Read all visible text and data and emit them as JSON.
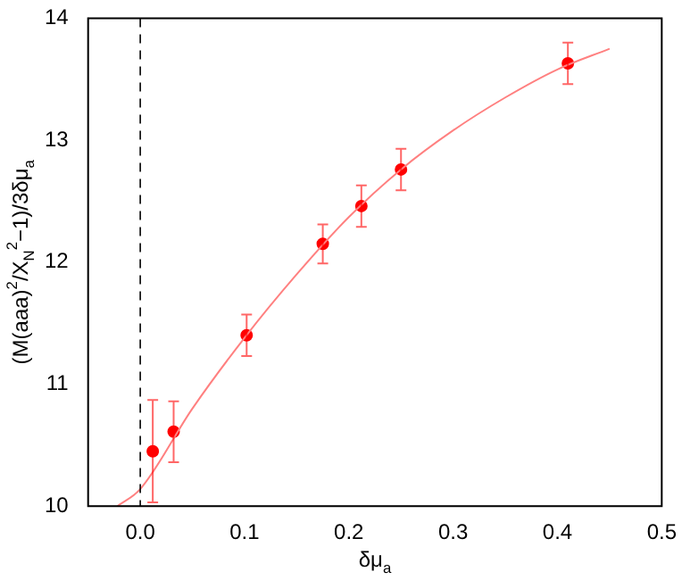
{
  "chart_data": {
    "type": "scatter",
    "xlabel": "δμ$_{a}$",
    "ylabel": "(M(aaa)$^{2}$/X$_{N}$$^{2}$−1)/3δμ$_{a}$",
    "xlim": [
      -0.05,
      0.5
    ],
    "xticks": [
      {
        "value": 0,
        "label": "0.0"
      },
      0.1,
      0.2,
      0.3,
      0.4,
      0.5
    ],
    "ylim": [
      10,
      14
    ],
    "yticks": [
      10,
      11,
      12,
      13,
      14
    ],
    "grid": false,
    "legend": false,
    "marker": "circle",
    "ref_lines": [
      {
        "axis": "x",
        "value": 0,
        "color": "#000000",
        "line_style": "dashed"
      }
    ],
    "series": [
      {
        "type": "line",
        "color": "#ff8080",
        "marker": "none",
        "x": [
          -0.022,
          0,
          0.05,
          0.1,
          0.15,
          0.2,
          0.25,
          0.3,
          0.35,
          0.4,
          0.45
        ],
        "values": [
          10,
          10.14,
          10.8,
          11.38,
          11.9,
          12.37,
          12.76,
          13.08,
          13.35,
          13.58,
          13.75
        ]
      },
      {
        "color": "#ff0000",
        "x": [
          0.012,
          0.032,
          0.102,
          0.175,
          0.212,
          0.25,
          0.41
        ],
        "values": [
          10.45,
          10.61,
          11.4,
          12.15,
          12.46,
          12.76,
          13.63
        ],
        "errors": [
          0.42,
          0.25,
          0.17,
          0.16,
          0.17,
          0.17,
          0.17
        ]
      }
    ]
  }
}
